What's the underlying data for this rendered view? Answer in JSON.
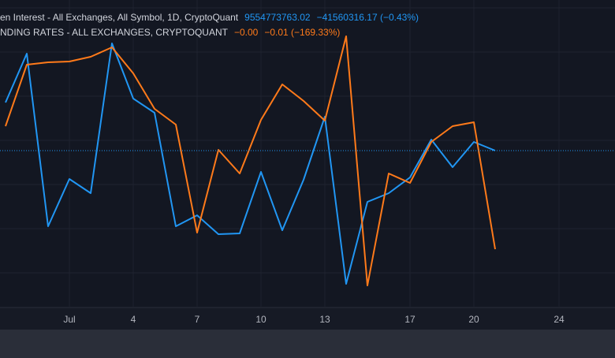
{
  "chart_data": {
    "type": "line",
    "legend_lines": [
      {
        "text": "en Interest - All Exchanges, All Symbol, 1D, CryptoQuant",
        "value": "9554773763.02",
        "change": "−41560316.17 (−0.43%)"
      },
      {
        "text": "NDING RATES - ALL EXCHANGES, CRYPTOQUANT",
        "value": "−0.00",
        "change": "−0.01 (−169.33%)"
      }
    ],
    "x": [
      -2,
      -1,
      0,
      1,
      2,
      3,
      4,
      5,
      6,
      7,
      8,
      9,
      10,
      11,
      12,
      13,
      14,
      15,
      16,
      17,
      18,
      19,
      20,
      21
    ],
    "xlim": [
      -2.26,
      26.63
    ],
    "xticks": [
      {
        "value": 1,
        "label": "Jul"
      },
      4,
      7,
      10,
      13,
      17,
      20,
      24
    ],
    "ylim": [
      0,
      390
    ],
    "series": [
      {
        "name": "Open Interest",
        "color": "#2196f3",
        "values": [
          260,
          322,
          103,
          163,
          145,
          335,
          265,
          247,
          103,
          117,
          93,
          94,
          172,
          98,
          162,
          242,
          30,
          134,
          145,
          165,
          213,
          178,
          210,
          199
        ]
      },
      {
        "name": "Funding Rates",
        "color": "#ff7a1a",
        "values": [
          230,
          308,
          311,
          312,
          318,
          330,
          297,
          252,
          232,
          95,
          200,
          170,
          238,
          283,
          262,
          237,
          344,
          28,
          170,
          158,
          210,
          230,
          235,
          74
        ]
      }
    ]
  }
}
